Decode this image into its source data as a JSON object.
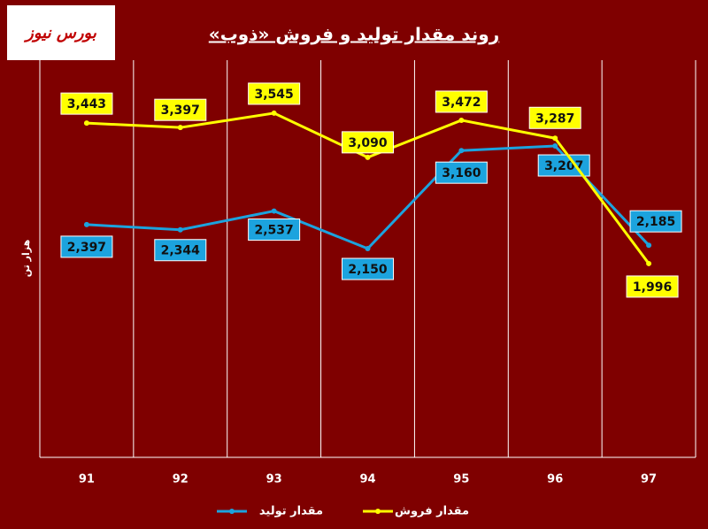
{
  "chart_data": {
    "type": "line",
    "logo": "بورس نیوز",
    "title": "روند مقدار تولید و فروش «ذوب»",
    "y_label": "هزار تن",
    "categories": [
      "91",
      "92",
      "93",
      "94",
      "95",
      "96",
      "97"
    ],
    "series": [
      {
        "name": "مقدار تولید",
        "color": "#1ca3de",
        "values": [
          2397,
          2344,
          2537,
          2150,
          3160,
          3207,
          2185
        ],
        "value_labels": [
          "2,397",
          "2,344",
          "2,537",
          "2,150",
          "3,160",
          "3,207",
          "2,185"
        ]
      },
      {
        "name": "مقدار فروش",
        "color": "#ffff00",
        "values": [
          3443,
          3397,
          3545,
          3090,
          3472,
          3287,
          1996
        ],
        "value_labels": [
          "3,443",
          "3,397",
          "3,545",
          "3,090",
          "3,472",
          "3,287",
          "1,996"
        ]
      }
    ],
    "ylim": [
      0,
      4000
    ],
    "grid": true
  }
}
